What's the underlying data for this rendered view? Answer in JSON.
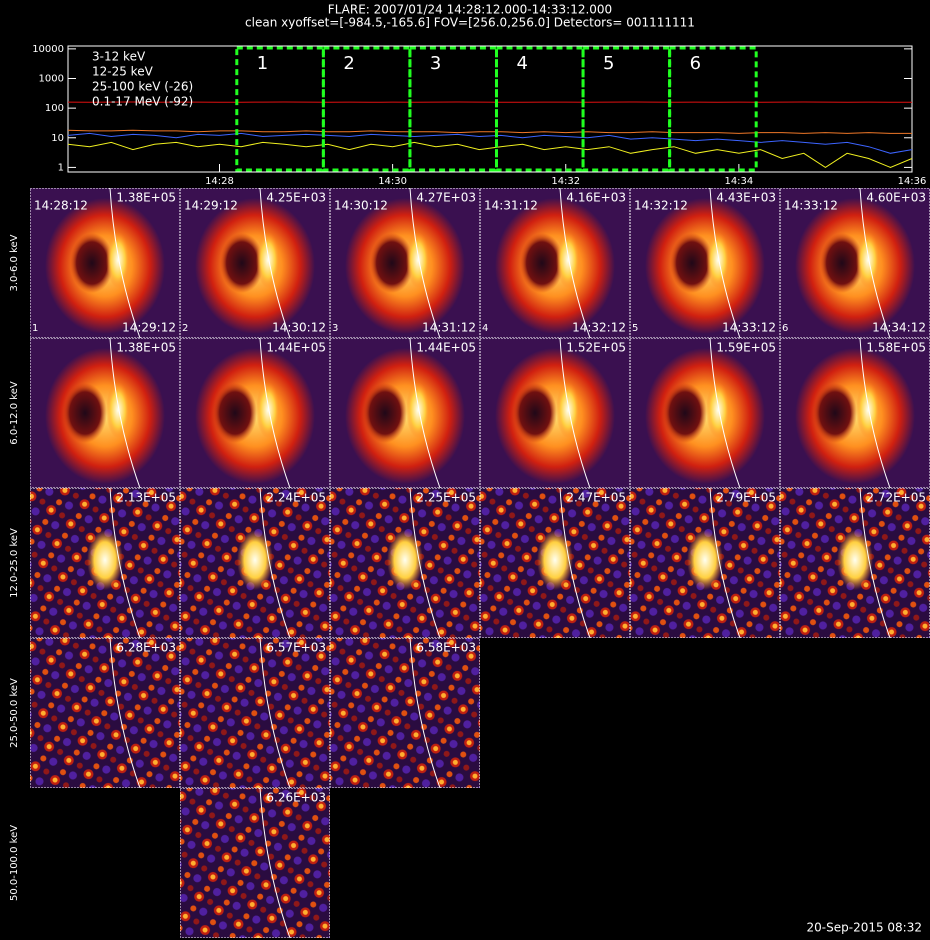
{
  "header": {
    "title": "FLARE: 2007/01/24  14:28:12.000-14:33:12.000",
    "subtitle": "clean    xyoffset=[-984.5,-165.6]    FOV=[256.0,256.0]    Detectors= 001111111"
  },
  "chart_data": {
    "type": "line",
    "log_y": true,
    "x": [
      "14:26:15",
      "14:26:30",
      "14:26:45",
      "14:27:00",
      "14:27:15",
      "14:27:30",
      "14:27:45",
      "14:28:00",
      "14:28:15",
      "14:28:30",
      "14:28:45",
      "14:29:00",
      "14:29:15",
      "14:29:30",
      "14:29:45",
      "14:30:00",
      "14:30:15",
      "14:30:30",
      "14:30:45",
      "14:31:00",
      "14:31:15",
      "14:31:30",
      "14:31:45",
      "14:32:00",
      "14:32:15",
      "14:32:30",
      "14:32:45",
      "14:33:00",
      "14:33:15",
      "14:33:30",
      "14:33:45",
      "14:34:00",
      "14:34:15",
      "14:34:30",
      "14:34:45",
      "14:35:00",
      "14:35:15",
      "14:35:30",
      "14:35:45",
      "14:36:00"
    ],
    "xlim": [
      "14:26:15",
      "14:36:00"
    ],
    "xticks": [
      "14:28",
      "14:30",
      "14:32",
      "14:34",
      "14:36"
    ],
    "ylim": [
      0.7,
      12500
    ],
    "yticks": [
      1,
      10,
      100,
      1000,
      10000
    ],
    "series": [
      {
        "name": "3-12 keV",
        "color": "#e01010",
        "values": [
          160,
          158,
          160,
          161,
          159,
          160,
          160,
          158,
          159,
          160,
          161,
          160,
          159,
          160,
          158,
          160,
          159,
          160,
          161,
          160,
          159,
          158,
          160,
          160,
          159,
          160,
          161,
          160,
          159,
          160,
          158,
          160,
          159,
          160,
          161,
          160,
          159,
          160,
          158,
          159
        ]
      },
      {
        "name": "12-25 keV",
        "color": "#f07828",
        "values": [
          18,
          17,
          17,
          18,
          17,
          17,
          16,
          17,
          17,
          16,
          16,
          17,
          16,
          16,
          17,
          16,
          16,
          16,
          15,
          16,
          16,
          15,
          16,
          15,
          16,
          15,
          15,
          16,
          15,
          15,
          15,
          14,
          15,
          15,
          14,
          15,
          14,
          15,
          14,
          14
        ]
      },
      {
        "name": "25-100 keV (-26)",
        "color": "#f0f020",
        "values": [
          6,
          5,
          7,
          4,
          6,
          7,
          5,
          6,
          5,
          7,
          6,
          5,
          6,
          4,
          6,
          5,
          7,
          5,
          6,
          4,
          5,
          6,
          4,
          5,
          4,
          5,
          3,
          4,
          5,
          3,
          4,
          3,
          4,
          2,
          3,
          1,
          3,
          2,
          1,
          2
        ]
      },
      {
        "name": "0.1-17 MeV (-92)",
        "color": "#3c64ff",
        "values": [
          12,
          14,
          11,
          13,
          12,
          10,
          13,
          12,
          14,
          11,
          12,
          13,
          12,
          11,
          13,
          12,
          11,
          12,
          13,
          11,
          12,
          10,
          12,
          11,
          10,
          12,
          9,
          10,
          9,
          8,
          9,
          8,
          7,
          8,
          7,
          6,
          7,
          5,
          3,
          4
        ]
      }
    ],
    "intervals": [
      {
        "label": "1",
        "start": "14:28:12",
        "end": "14:29:12"
      },
      {
        "label": "2",
        "start": "14:29:12",
        "end": "14:30:12"
      },
      {
        "label": "3",
        "start": "14:30:12",
        "end": "14:31:12"
      },
      {
        "label": "4",
        "start": "14:31:12",
        "end": "14:32:12"
      },
      {
        "label": "5",
        "start": "14:32:12",
        "end": "14:33:12"
      },
      {
        "label": "6",
        "start": "14:33:12",
        "end": "14:34:12"
      }
    ]
  },
  "image_rows": [
    {
      "label": "3.0-6.0 keV",
      "peaks": [
        "1.38E+05",
        "4.25E+03",
        "4.27E+03",
        "4.16E+03",
        "4.43E+03",
        "4.60E+03"
      ]
    },
    {
      "label": "6.0-12.0 keV",
      "peaks": [
        "1.38E+05",
        "1.44E+05",
        "1.44E+05",
        "1.52E+05",
        "1.59E+05",
        "1.58E+05"
      ]
    },
    {
      "label": "12.0-25.0 keV",
      "peaks": [
        "2.13E+05",
        "2.24E+05",
        "2.25E+05",
        "2.47E+05",
        "2.79E+05",
        "2.72E+05"
      ]
    },
    {
      "label": "25.0-50.0 keV",
      "peaks": [
        "6.28E+03",
        "6.57E+03",
        "6.58E+03",
        null,
        null,
        null
      ]
    },
    {
      "label": "50.0-100.0 keV",
      "peaks": [
        null,
        "6.26E+03",
        null,
        null,
        null,
        null
      ]
    }
  ],
  "footer": "20-Sep-2015 08:32"
}
